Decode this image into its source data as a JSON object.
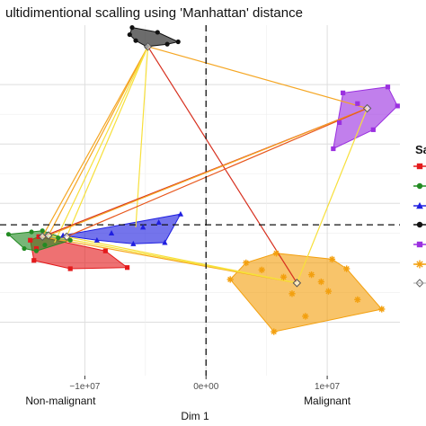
{
  "chart_data": {
    "type": "scatter",
    "title": "ultidimentional scalling using 'Manhattan' distance",
    "xlabel": "Dim 1",
    "ylabel": "",
    "xlim": [
      -17000000.0,
      16000000.0
    ],
    "ylim": [
      -1.45,
      1.5
    ],
    "x_ticks": [
      {
        "value": -10000000.0,
        "label": "−1e+07"
      },
      {
        "value": 0,
        "label": "0e+00"
      },
      {
        "value": 10000000.0,
        "label": "1e+07"
      }
    ],
    "x_group_labels": [
      {
        "value": -12000000.0,
        "label": "Non-malignant"
      },
      {
        "value": 10000000.0,
        "label": "Malignant"
      }
    ],
    "y_gridlines": [
      -1.0,
      -0.5,
      0.0,
      0.5,
      1.0
    ],
    "reference_lines": {
      "x": 0,
      "y": -0.18
    },
    "grid": true,
    "legend_title": "Sa",
    "legend_position": "right",
    "series": [
      {
        "color": "#e41a1c",
        "marker": "square",
        "centroid": [
          -13500000.0,
          -0.28
        ],
        "points": [
          [
            -14200000.0,
            -0.48
          ],
          [
            -11200000.0,
            -0.55
          ],
          [
            -6500000.0,
            -0.54
          ],
          [
            -8300000.0,
            -0.4
          ],
          [
            -14500000.0,
            -0.31
          ],
          [
            -14000000.0,
            -0.38
          ],
          [
            -13800000.0,
            -0.28
          ]
        ]
      },
      {
        "color": "#238b23",
        "marker": "circle",
        "centroid": [
          -13000000.0,
          -0.27
        ],
        "points": [
          [
            -16300000.0,
            -0.26
          ],
          [
            -14400000.0,
            -0.24
          ],
          [
            -13500000.0,
            -0.23
          ],
          [
            -11200000.0,
            -0.31
          ],
          [
            -12200000.0,
            -0.29
          ],
          [
            -13300000.0,
            -0.35
          ],
          [
            -14000000.0,
            -0.4
          ],
          [
            -15000000.0,
            -0.38
          ]
        ]
      },
      {
        "color": "#1f1fe0",
        "marker": "triangle",
        "centroid": [
          -11500000.0,
          -0.28
        ],
        "points": [
          [
            -2100000.0,
            -0.09
          ],
          [
            -3400000.0,
            -0.33
          ],
          [
            -6000000.0,
            -0.34
          ],
          [
            -9000000.0,
            -0.31
          ],
          [
            -11800000.0,
            -0.27
          ],
          [
            -7800000.0,
            -0.25
          ],
          [
            -5200000.0,
            -0.2
          ],
          [
            -3900000.0,
            -0.16
          ]
        ]
      },
      {
        "color": "#111111",
        "marker": "circle",
        "centroid": [
          -4800000.0,
          1.32
        ],
        "points": [
          [
            -6100000.0,
            1.48
          ],
          [
            -4000000.0,
            1.44
          ],
          [
            -2300000.0,
            1.36
          ],
          [
            -3200000.0,
            1.34
          ],
          [
            -4900000.0,
            1.32
          ],
          [
            -5800000.0,
            1.37
          ],
          [
            -6300000.0,
            1.42
          ]
        ]
      },
      {
        "color": "#9b30e0",
        "marker": "square",
        "centroid": [
          13300000.0,
          0.8
        ],
        "points": [
          [
            11300000.0,
            0.93
          ],
          [
            15000000.0,
            0.98
          ],
          [
            15800000.0,
            0.82
          ],
          [
            13800000.0,
            0.62
          ],
          [
            10500000.0,
            0.46
          ],
          [
            11000000.0,
            0.68
          ],
          [
            12500000.0,
            0.84
          ]
        ]
      },
      {
        "color": "#f3a00f",
        "marker": "asterisk",
        "centroid": [
          7500000.0,
          -0.67
        ],
        "points": [
          [
            5800000.0,
            -0.42
          ],
          [
            10400000.0,
            -0.47
          ],
          [
            11600000.0,
            -0.55
          ],
          [
            14500000.0,
            -0.89
          ],
          [
            8200000.0,
            -0.95
          ],
          [
            5600000.0,
            -1.08
          ],
          [
            2000000.0,
            -0.64
          ],
          [
            3300000.0,
            -0.5
          ],
          [
            4600000.0,
            -0.56
          ],
          [
            6400000.0,
            -0.62
          ],
          [
            9500000.0,
            -0.66
          ],
          [
            10100000.0,
            -0.74
          ],
          [
            12500000.0,
            -0.81
          ],
          [
            8700000.0,
            -0.6
          ],
          [
            7100000.0,
            -0.76
          ]
        ]
      }
    ],
    "links": [
      {
        "from": [
          -4800000.0,
          1.32
        ],
        "to": [
          13300000.0,
          0.8
        ],
        "color": "#f5a623"
      },
      {
        "from": [
          -4800000.0,
          1.32
        ],
        "to": [
          7500000.0,
          -0.67
        ],
        "color": "#d7301f"
      },
      {
        "from": [
          -4800000.0,
          1.32
        ],
        "to": [
          -13500000.0,
          -0.28
        ],
        "color": "#f5a623"
      },
      {
        "from": [
          -4800000.0,
          1.32
        ],
        "to": [
          -13000000.0,
          -0.27
        ],
        "color": "#f5a623"
      },
      {
        "from": [
          -4800000.0,
          1.32
        ],
        "to": [
          -11500000.0,
          -0.28
        ],
        "color": "#f7e03b"
      },
      {
        "from": [
          -4800000.0,
          1.32
        ],
        "to": [
          -12500000.0,
          -0.33
        ],
        "color": "#f7e03b"
      },
      {
        "from": [
          -4800000.0,
          1.32
        ],
        "to": [
          -5800000.0,
          -0.2
        ],
        "color": "#f7e03b"
      },
      {
        "from": [
          -13500000.0,
          -0.28
        ],
        "to": [
          13300000.0,
          0.8
        ],
        "color": "#d7301f"
      },
      {
        "from": [
          -13000000.0,
          -0.27
        ],
        "to": [
          13300000.0,
          0.8
        ],
        "color": "#f5a623"
      },
      {
        "from": [
          -11500000.0,
          -0.28
        ],
        "to": [
          13300000.0,
          0.8
        ],
        "color": "#e8571c"
      },
      {
        "from": [
          -13500000.0,
          -0.28
        ],
        "to": [
          7500000.0,
          -0.67
        ],
        "color": "#f5a623"
      },
      {
        "from": [
          -13000000.0,
          -0.27
        ],
        "to": [
          7500000.0,
          -0.67
        ],
        "color": "#f7e03b"
      },
      {
        "from": [
          -11500000.0,
          -0.28
        ],
        "to": [
          7500000.0,
          -0.67
        ],
        "color": "#f7e03b"
      },
      {
        "from": [
          7500000.0,
          -0.67
        ],
        "to": [
          13300000.0,
          0.8
        ],
        "color": "#f7e03b"
      }
    ]
  }
}
